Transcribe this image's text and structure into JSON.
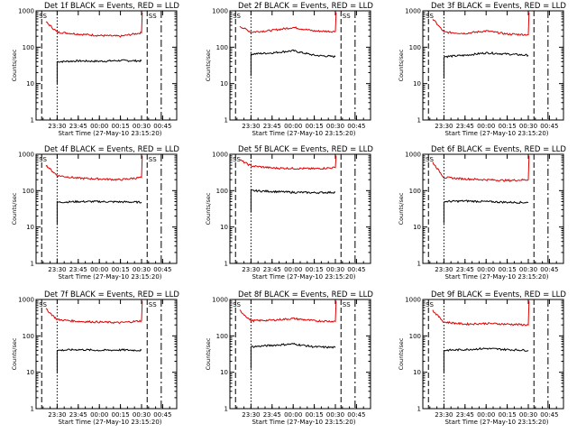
{
  "colors": {
    "events": "#000000",
    "lld": "#e00000",
    "background": "#ffffff"
  },
  "chart_data": [
    {
      "type": "line",
      "title": "Det 1f BLACK = Events, RED = LLD",
      "xlabel": "Start Time (27-May-10 23:15:20)",
      "ylabel": "Counts/sec",
      "x_ticks": [
        "23:30",
        "23:45",
        "00:00",
        "00:15",
        "00:30",
        "00:45"
      ],
      "y_ticks": [
        "1",
        "10",
        "100",
        "1000"
      ],
      "ylim": [
        1,
        1000
      ],
      "yscale": "log",
      "flags": [
        "SS",
        "SS"
      ],
      "series": [
        {
          "name": "Events",
          "x": [
            "23:30",
            "23:45",
            "00:00",
            "00:15",
            "00:30"
          ],
          "values": [
            40,
            42,
            41,
            43,
            42
          ]
        },
        {
          "name": "LLD",
          "x": [
            "23:22",
            "23:30",
            "23:45",
            "00:00",
            "00:15",
            "00:30"
          ],
          "values": [
            500,
            260,
            230,
            210,
            200,
            250
          ]
        }
      ]
    },
    {
      "type": "line",
      "title": "Det 2f BLACK = Events, RED = LLD",
      "xlabel": "Start Time (27-May-10 23:15:20)",
      "ylabel": "Counts/sec",
      "x_ticks": [
        "23:30",
        "23:45",
        "00:00",
        "00:15",
        "00:30",
        "00:45"
      ],
      "y_ticks": [
        "1",
        "10",
        "100",
        "1000"
      ],
      "ylim": [
        1,
        1000
      ],
      "yscale": "log",
      "flags": [
        "SS",
        "SS"
      ],
      "series": [
        {
          "name": "Events",
          "x": [
            "23:30",
            "23:45",
            "00:00",
            "00:15",
            "00:30"
          ],
          "values": [
            65,
            70,
            80,
            60,
            55
          ]
        },
        {
          "name": "LLD",
          "x": [
            "23:22",
            "23:30",
            "23:45",
            "00:00",
            "00:15",
            "00:30"
          ],
          "values": [
            380,
            260,
            290,
            350,
            280,
            270
          ]
        }
      ]
    },
    {
      "type": "line",
      "title": "Det 3f BLACK = Events, RED = LLD",
      "xlabel": "Start Time (27-May-10 23:15:20)",
      "ylabel": "Counts/sec",
      "x_ticks": [
        "23:30",
        "23:45",
        "00:00",
        "00:15",
        "00:30",
        "00:45"
      ],
      "y_ticks": [
        "1",
        "10",
        "100",
        "1000"
      ],
      "ylim": [
        1,
        1000
      ],
      "yscale": "log",
      "flags": [
        "SS"
      ],
      "series": [
        {
          "name": "Events",
          "x": [
            "23:30",
            "23:45",
            "00:00",
            "00:15",
            "00:30"
          ],
          "values": [
            55,
            60,
            70,
            65,
            60
          ]
        },
        {
          "name": "LLD",
          "x": [
            "23:22",
            "23:30",
            "23:45",
            "00:00",
            "00:15",
            "00:30"
          ],
          "values": [
            600,
            260,
            240,
            280,
            230,
            220
          ]
        }
      ]
    },
    {
      "type": "line",
      "title": "Det 4f BLACK = Events, RED = LLD",
      "xlabel": "Start Time (27-May-10 23:15:20)",
      "ylabel": "Counts/sec",
      "x_ticks": [
        "23:30",
        "23:45",
        "00:00",
        "00:15",
        "00:30",
        "00:45"
      ],
      "y_ticks": [
        "1",
        "10",
        "100",
        "1000"
      ],
      "ylim": [
        1,
        1000
      ],
      "yscale": "log",
      "flags": [
        "SS",
        "SS"
      ],
      "series": [
        {
          "name": "Events",
          "x": [
            "23:30",
            "23:45",
            "00:00",
            "00:15",
            "00:30"
          ],
          "values": [
            48,
            50,
            50,
            49,
            48
          ]
        },
        {
          "name": "LLD",
          "x": [
            "23:22",
            "23:30",
            "23:45",
            "00:00",
            "00:15",
            "00:30"
          ],
          "values": [
            500,
            260,
            220,
            210,
            200,
            230
          ]
        }
      ]
    },
    {
      "type": "line",
      "title": "Det 5f BLACK = Events, RED = LLD",
      "xlabel": "Start Time (27-May-10 23:15:20)",
      "ylabel": "Counts/sec",
      "x_ticks": [
        "23:30",
        "23:45",
        "00:00",
        "00:15",
        "00:30",
        "00:45"
      ],
      "y_ticks": [
        "1",
        "10",
        "100",
        "1000"
      ],
      "ylim": [
        1,
        1000
      ],
      "yscale": "log",
      "flags": [
        "SS"
      ],
      "series": [
        {
          "name": "Events",
          "x": [
            "23:30",
            "23:45",
            "00:00",
            "00:15",
            "00:30"
          ],
          "values": [
            100,
            95,
            90,
            88,
            90
          ]
        },
        {
          "name": "LLD",
          "x": [
            "23:22",
            "23:30",
            "23:45",
            "00:00",
            "00:15",
            "00:30"
          ],
          "values": [
            700,
            480,
            420,
            410,
            400,
            430
          ]
        }
      ]
    },
    {
      "type": "line",
      "title": "Det 6f BLACK = Events, RED = LLD",
      "xlabel": "Start Time (27-May-10 23:15:20)",
      "ylabel": "Counts/sec",
      "x_ticks": [
        "23:30",
        "23:45",
        "00:00",
        "00:15",
        "00:30",
        "00:45"
      ],
      "y_ticks": [
        "1",
        "10",
        "100",
        "1000"
      ],
      "ylim": [
        1,
        1000
      ],
      "yscale": "log",
      "flags": [
        "SS"
      ],
      "series": [
        {
          "name": "Events",
          "x": [
            "23:30",
            "23:45",
            "00:00",
            "00:15",
            "00:30"
          ],
          "values": [
            50,
            52,
            50,
            48,
            47
          ]
        },
        {
          "name": "LLD",
          "x": [
            "23:22",
            "23:30",
            "23:45",
            "00:00",
            "00:15",
            "00:30"
          ],
          "values": [
            600,
            230,
            210,
            200,
            190,
            200
          ]
        }
      ]
    },
    {
      "type": "line",
      "title": "Det 7f BLACK = Events, RED = LLD",
      "xlabel": "Start Time (27-May-10 23:15:20)",
      "ylabel": "Counts/sec",
      "x_ticks": [
        "23:30",
        "23:45",
        "00:00",
        "00:15",
        "00:30",
        "00:45"
      ],
      "y_ticks": [
        "1",
        "10",
        "100",
        "1000"
      ],
      "ylim": [
        1,
        1000
      ],
      "yscale": "log",
      "flags": [
        "SS",
        "SS"
      ],
      "series": [
        {
          "name": "Events",
          "x": [
            "23:30",
            "23:45",
            "00:00",
            "00:15",
            "00:30"
          ],
          "values": [
            40,
            42,
            40,
            41,
            40
          ]
        },
        {
          "name": "LLD",
          "x": [
            "23:22",
            "23:30",
            "23:45",
            "00:00",
            "00:15",
            "00:30"
          ],
          "values": [
            550,
            280,
            250,
            240,
            230,
            260
          ]
        }
      ]
    },
    {
      "type": "line",
      "title": "Det 8f BLACK = Events, RED = LLD",
      "xlabel": "Start Time (27-May-10 23:15:20)",
      "ylabel": "Counts/sec",
      "x_ticks": [
        "23:30",
        "23:45",
        "00:00",
        "00:15",
        "00:30",
        "00:45"
      ],
      "y_ticks": [
        "1",
        "10",
        "100",
        "1000"
      ],
      "ylim": [
        1,
        1000
      ],
      "yscale": "log",
      "flags": [
        "SS",
        "SS"
      ],
      "series": [
        {
          "name": "Events",
          "x": [
            "23:30",
            "23:45",
            "00:00",
            "00:15",
            "00:30"
          ],
          "values": [
            50,
            55,
            60,
            50,
            48
          ]
        },
        {
          "name": "LLD",
          "x": [
            "23:22",
            "23:30",
            "23:45",
            "00:00",
            "00:15",
            "00:30"
          ],
          "values": [
            500,
            260,
            270,
            300,
            260,
            250
          ]
        }
      ]
    },
    {
      "type": "line",
      "title": "Det 9f BLACK = Events, RED = LLD",
      "xlabel": "Start Time (27-May-10 23:15:20)",
      "ylabel": "Counts/sec",
      "x_ticks": [
        "23:30",
        "23:45",
        "00:00",
        "00:15",
        "00:30",
        "00:45"
      ],
      "y_ticks": [
        "1",
        "10",
        "100",
        "1000"
      ],
      "ylim": [
        1,
        1000
      ],
      "yscale": "log",
      "flags": [
        "SS"
      ],
      "series": [
        {
          "name": "Events",
          "x": [
            "23:30",
            "23:45",
            "00:00",
            "00:15",
            "00:30"
          ],
          "values": [
            40,
            42,
            45,
            42,
            40
          ]
        },
        {
          "name": "LLD",
          "x": [
            "23:22",
            "23:30",
            "23:45",
            "00:00",
            "00:15",
            "00:30"
          ],
          "values": [
            500,
            240,
            210,
            220,
            210,
            200
          ]
        }
      ]
    }
  ]
}
